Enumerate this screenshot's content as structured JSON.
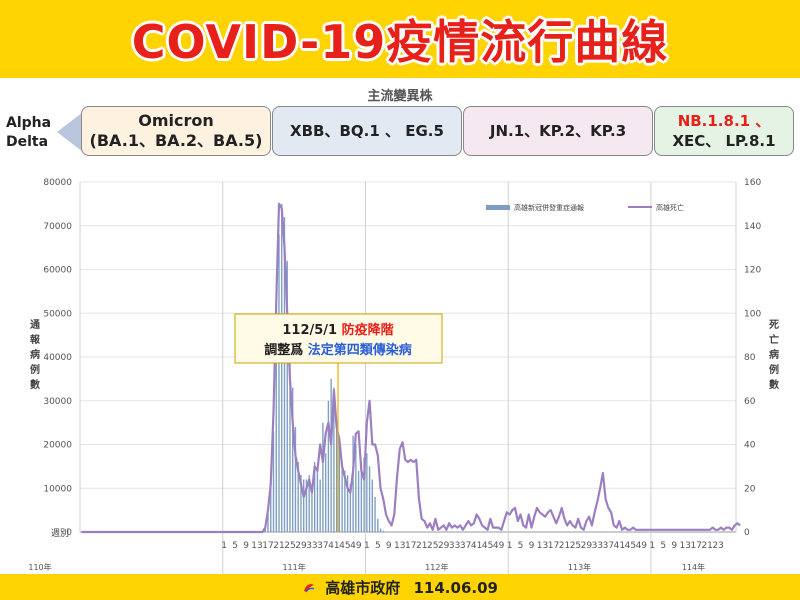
{
  "header": {
    "title": "COVID-19疫情流行曲線",
    "subtitle": "主流變異株"
  },
  "variants": {
    "previous": [
      "Alpha",
      "Delta"
    ],
    "eras": [
      {
        "line1": "Omicron",
        "line2": "(BA.1、BA.2、BA.5)",
        "line1_color": "#222222"
      },
      {
        "line1": "XBB、BQ.1 、 EG.5",
        "line2": "",
        "line1_color": "#222222"
      },
      {
        "line1": "JN.1、KP.2、KP.3",
        "line2": "",
        "line1_color": "#222222"
      },
      {
        "line1": "NB.1.8.1 、",
        "line2": "XEC、 LP.8.1",
        "line1_color": "#e8201a"
      }
    ]
  },
  "annotation": {
    "date": "112/5/1",
    "highlight": "防疫降階",
    "line2_prefix": "調整爲",
    "line2_highlight": "法定第四類傳染病"
  },
  "footer": {
    "org": "高雄市政府",
    "date": "114.06.09"
  },
  "colors": {
    "bar": "#7d9ec2",
    "line": "#9b7fc1",
    "marker": "#f0b000",
    "band": "#ffd400",
    "title": "#e8201a"
  },
  "chart_data": {
    "type": "bar",
    "title": "",
    "xlabel": "週別",
    "ylabel": "通報病例數",
    "y2label": "死亡病例數",
    "ylim": [
      0,
      80000
    ],
    "y2lim": [
      0,
      160
    ],
    "yticks": [
      0,
      10000,
      20000,
      30000,
      40000,
      50000,
      60000,
      70000,
      80000
    ],
    "y2ticks": [
      0,
      20,
      40,
      60,
      80,
      100,
      120,
      140,
      160
    ],
    "xtick_labels": [
      "1",
      "5",
      "9",
      "13",
      "17",
      "21",
      "25",
      "29",
      "33",
      "37",
      "41",
      "45",
      "49",
      "1",
      "5",
      "9",
      "13",
      "17",
      "21",
      "25",
      "29",
      "33",
      "37",
      "41",
      "45",
      "49",
      "1",
      "5",
      "9",
      "13",
      "17",
      "21",
      "25",
      "29",
      "33",
      "37",
      "41",
      "45",
      "49",
      "1",
      "5",
      "9",
      "13",
      "17",
      "21",
      "23"
    ],
    "years": [
      {
        "label": "110年"
      },
      {
        "label": "111年"
      },
      {
        "label": "112年"
      },
      {
        "label": "113年"
      },
      {
        "label": "114年"
      }
    ],
    "legend": [
      "高雄新冠併發重症通報",
      "高雄死亡"
    ],
    "legend_position": "top-right",
    "series": [
      {
        "name": "高雄新冠併發重症通報",
        "type": "bar",
        "values": [
          0,
          0,
          0,
          0,
          0,
          0,
          0,
          0,
          0,
          0,
          0,
          0,
          0,
          0,
          0,
          0,
          0,
          0,
          0,
          0,
          0,
          0,
          0,
          0,
          0,
          0,
          0,
          0,
          0,
          0,
          0,
          0,
          0,
          0,
          0,
          0,
          0,
          0,
          0,
          0,
          0,
          0,
          0,
          0,
          0,
          0,
          0,
          0,
          0,
          0,
          0,
          0,
          0,
          0,
          0,
          0,
          0,
          0,
          0,
          0,
          0,
          0,
          0,
          0,
          0,
          0,
          0,
          1000,
          4000,
          10000,
          23000,
          46000,
          68000,
          75000,
          72000,
          62000,
          45000,
          33000,
          24000,
          16000,
          13000,
          12000,
          12000,
          13000,
          10000,
          16000,
          14000,
          12000,
          25000,
          18000,
          30000,
          35000,
          33000,
          25000,
          22000,
          16000,
          14000,
          13000,
          11000,
          22000,
          20000,
          14000,
          16000,
          17000,
          18000,
          15000,
          12000,
          8000,
          3000,
          800,
          300,
          150,
          100,
          100,
          80,
          80,
          60,
          60,
          60,
          50,
          50,
          50,
          50,
          50,
          50,
          50,
          50,
          50,
          50,
          50,
          50,
          50,
          50,
          50,
          50,
          50,
          50,
          50,
          50,
          50,
          50,
          50,
          50,
          50,
          50,
          50,
          50,
          50,
          50,
          50,
          50,
          50,
          50,
          50,
          50,
          50,
          50,
          50,
          50,
          50,
          50,
          50,
          50,
          50,
          0,
          0,
          0,
          0,
          0,
          0,
          0,
          0,
          0,
          0,
          0,
          0,
          0,
          0,
          0,
          0,
          0,
          0,
          0,
          0,
          0,
          0,
          0,
          0,
          0,
          0,
          0,
          0,
          0,
          0,
          0,
          0,
          0,
          0,
          0,
          0,
          0,
          0,
          0,
          0,
          0,
          0,
          0,
          0,
          0,
          0,
          0,
          0,
          0,
          0,
          0,
          0,
          0,
          0,
          0,
          0,
          0,
          0,
          0,
          0,
          0,
          0,
          0,
          0,
          0,
          0,
          0,
          0,
          0,
          0,
          0,
          0,
          0,
          0,
          0
        ]
      },
      {
        "name": "高雄死亡",
        "type": "line",
        "axis": "right",
        "values": [
          0,
          0,
          0,
          0,
          0,
          0,
          0,
          0,
          0,
          0,
          0,
          0,
          0,
          0,
          0,
          0,
          0,
          0,
          0,
          0,
          0,
          0,
          0,
          0,
          0,
          0,
          0,
          0,
          0,
          0,
          0,
          0,
          0,
          0,
          0,
          0,
          0,
          0,
          0,
          0,
          0,
          0,
          0,
          0,
          0,
          0,
          0,
          0,
          0,
          0,
          0,
          0,
          0,
          0,
          0,
          0,
          0,
          0,
          0,
          0,
          0,
          0,
          0,
          0,
          0,
          0,
          0,
          2,
          10,
          22,
          55,
          105,
          150,
          148,
          130,
          100,
          70,
          50,
          35,
          28,
          22,
          16,
          20,
          24,
          18,
          30,
          28,
          40,
          32,
          45,
          50,
          40,
          65,
          48,
          42,
          30,
          25,
          20,
          18,
          28,
          45,
          46,
          28,
          24,
          50,
          60,
          40,
          40,
          35,
          20,
          15,
          8,
          5,
          3,
          8,
          25,
          38,
          41,
          33,
          32,
          33,
          32,
          33,
          15,
          6,
          5,
          2,
          4,
          1,
          6,
          1,
          2,
          3,
          1,
          4,
          2,
          3,
          2,
          3,
          1,
          3,
          5,
          3,
          4,
          8,
          6,
          3,
          2,
          1,
          6,
          2,
          2,
          2,
          1,
          5,
          9,
          8,
          10,
          11,
          5,
          8,
          3,
          2,
          8,
          2,
          7,
          11,
          9,
          8,
          7,
          9,
          10,
          7,
          4,
          7,
          11,
          6,
          3,
          5,
          3,
          2,
          6,
          2,
          1,
          5,
          7,
          3,
          9,
          14,
          20,
          27,
          15,
          11,
          9,
          3,
          2,
          5,
          1,
          2,
          1,
          1,
          2,
          1,
          1,
          1,
          1,
          1,
          1,
          1,
          1,
          1,
          1,
          1,
          1,
          1,
          1,
          1,
          1,
          1,
          1,
          1,
          1,
          1,
          1,
          1,
          1,
          1,
          1,
          1,
          1,
          2,
          1,
          1,
          2,
          1,
          2,
          2,
          1,
          3,
          4,
          3
        ]
      }
    ]
  }
}
